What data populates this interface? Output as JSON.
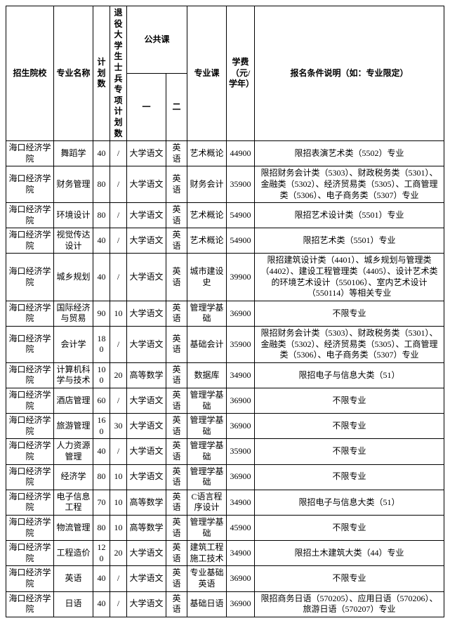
{
  "headers": {
    "school": "招生院校",
    "major": "专业名称",
    "plan": "计划数",
    "veteran": "退役大学生士兵专项计划数",
    "publicCourse": "公共课",
    "pubSub1": "一",
    "pubSub2": "二",
    "specCourse": "专业课",
    "fee": "学费（元/学年）",
    "requirements": "报名条件说明（如：专业限定）"
  },
  "rows": [
    {
      "school": "海口经济学院",
      "major": "舞蹈学",
      "plan": "40",
      "vet": "/",
      "pub1": "大学语文",
      "pub2": "英语",
      "spec": "艺术概论",
      "fee": "44900",
      "req": "限招表演艺术类（5502）专业"
    },
    {
      "school": "海口经济学院",
      "major": "财务管理",
      "plan": "80",
      "vet": "/",
      "pub1": "大学语文",
      "pub2": "英语",
      "spec": "财务会计",
      "fee": "35900",
      "req": "限招财务会计类（5303）、财政税务类（5301）、金融类（5302）、经济贸易类（5305）、工商管理类（5306）、电子商务类（5307）专业"
    },
    {
      "school": "海口经济学院",
      "major": "环境设计",
      "plan": "80",
      "vet": "/",
      "pub1": "大学语文",
      "pub2": "英语",
      "spec": "艺术概论",
      "fee": "54900",
      "req": "限招艺术设计类（5501）专业"
    },
    {
      "school": "海口经济学院",
      "major": "视觉传达设计",
      "plan": "40",
      "vet": "/",
      "pub1": "大学语文",
      "pub2": "英语",
      "spec": "艺术概论",
      "fee": "54900",
      "req": "限招艺术类（5501）专业"
    },
    {
      "school": "海口经济学院",
      "major": "城乡规划",
      "plan": "40",
      "vet": "/",
      "pub1": "大学语文",
      "pub2": "英语",
      "spec": "城市建设史",
      "fee": "39900",
      "req": "限招建筑设计类（4401）、城乡规划与管理类（4402）、建设工程管理类（4405）、设计艺术类的环境艺术设计（550106）、室内艺术设计（550114）等相关专业"
    },
    {
      "school": "海口经济学院",
      "major": "国际经济与贸易",
      "plan": "90",
      "vet": "10",
      "pub1": "大学语文",
      "pub2": "英语",
      "spec": "管理学基础",
      "fee": "36900",
      "req": "不限专业"
    },
    {
      "school": "海口经济学院",
      "major": "会计学",
      "plan": "180",
      "vet": "/",
      "pub1": "大学语文",
      "pub2": "英语",
      "spec": "基础会计",
      "fee": "35900",
      "req": "限招财务会计类（5303）、财政税务类（5301）、金融类（5302）、经济贸易类（5305）、工商管理类（5306）、电子商务类（5307）专业"
    },
    {
      "school": "海口经济学院",
      "major": "计算机科学与技术",
      "plan": "100",
      "vet": "20",
      "pub1": "高等数学",
      "pub2": "英语",
      "spec": "数据库",
      "fee": "34900",
      "req": "限招电子与信息大类（51）"
    },
    {
      "school": "海口经济学院",
      "major": "酒店管理",
      "plan": "60",
      "vet": "/",
      "pub1": "大学语文",
      "pub2": "英语",
      "spec": "管理学基础",
      "fee": "36900",
      "req": "不限专业"
    },
    {
      "school": "海口经济学院",
      "major": "旅游管理",
      "plan": "160",
      "vet": "30",
      "pub1": "大学语文",
      "pub2": "英语",
      "spec": "管理学基础",
      "fee": "36900",
      "req": "不限专业"
    },
    {
      "school": "海口经济学院",
      "major": "人力资源管理",
      "plan": "40",
      "vet": "/",
      "pub1": "大学语文",
      "pub2": "英语",
      "spec": "管理学基础",
      "fee": "35900",
      "req": "不限专业"
    },
    {
      "school": "海口经济学院",
      "major": "经济学",
      "plan": "80",
      "vet": "10",
      "pub1": "大学语文",
      "pub2": "英语",
      "spec": "管理学基础",
      "fee": "36900",
      "req": "不限专业"
    },
    {
      "school": "海口经济学院",
      "major": "电子信息工程",
      "plan": "70",
      "vet": "10",
      "pub1": "高等数学",
      "pub2": "英语",
      "spec": "C语言程序设计",
      "fee": "34900",
      "req": "限招电子与信息大类（51）"
    },
    {
      "school": "海口经济学院",
      "major": "物流管理",
      "plan": "80",
      "vet": "10",
      "pub1": "高等数学",
      "pub2": "英语",
      "spec": "管理学基础",
      "fee": "45900",
      "req": "不限专业"
    },
    {
      "school": "海口经济学院",
      "major": "工程造价",
      "plan": "120",
      "vet": "20",
      "pub1": "大学语文",
      "pub2": "英语",
      "spec": "建筑工程施工技术",
      "fee": "34900",
      "req": "限招土木建筑大类（44）专业"
    },
    {
      "school": "海口经济学院",
      "major": "英语",
      "plan": "40",
      "vet": "/",
      "pub1": "大学语文",
      "pub2": "英语",
      "spec": "专业基础英语",
      "fee": "36900",
      "req": "不限专业"
    },
    {
      "school": "海口经济学院",
      "major": "日语",
      "plan": "40",
      "vet": "/",
      "pub1": "大学语文",
      "pub2": "英语",
      "spec": "基础日语",
      "fee": "36900",
      "req": "限招商务日语（570205）、应用日语（570206）、旅游日语（570207）专业"
    }
  ]
}
